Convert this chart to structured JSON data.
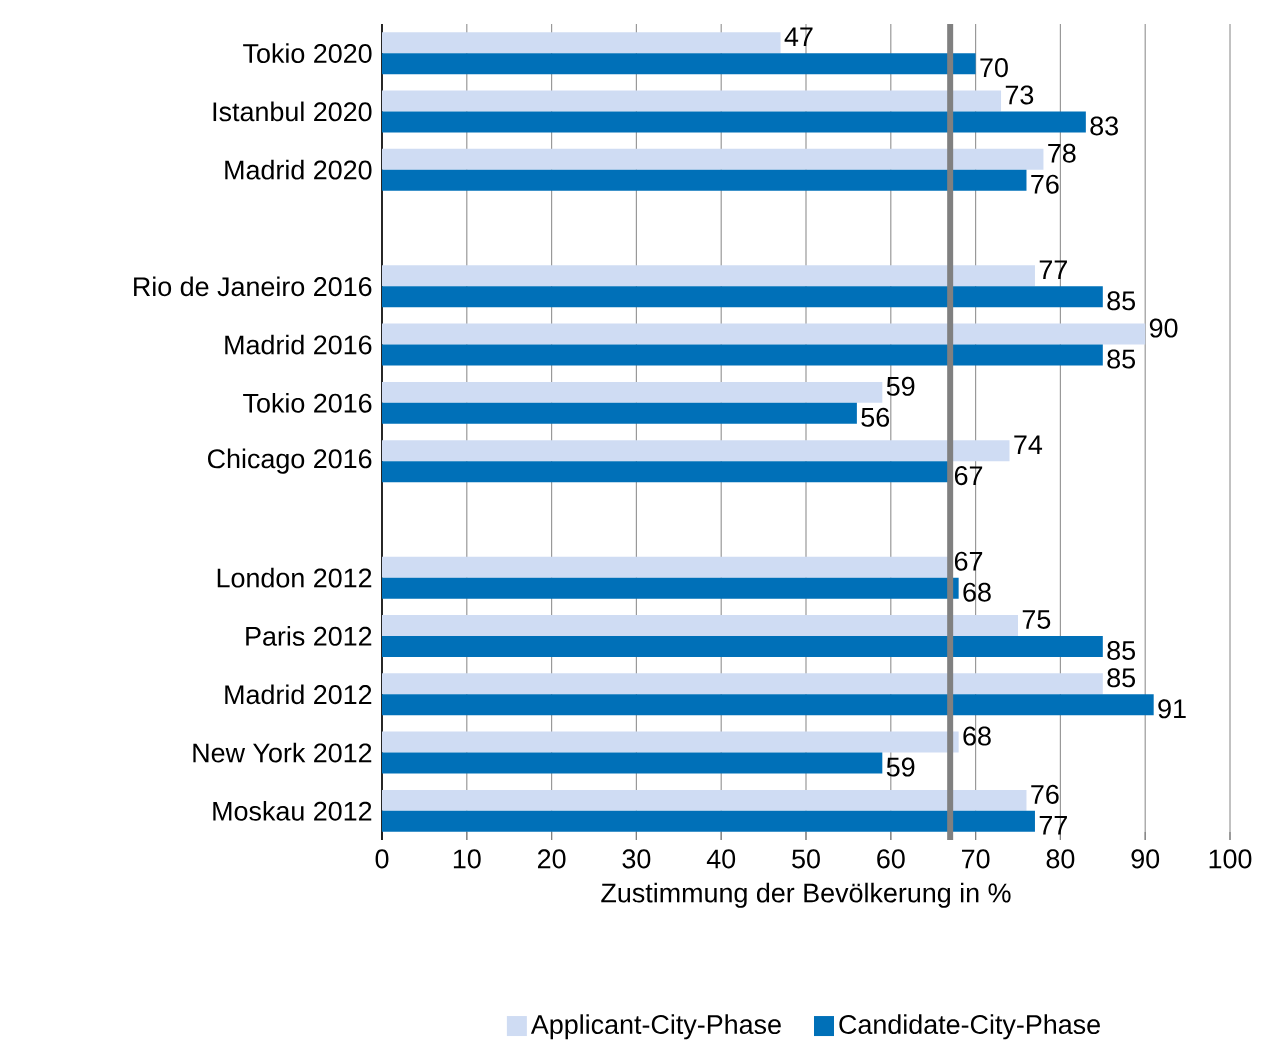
{
  "chart_data": {
    "type": "bar",
    "orientation": "horizontal",
    "xlabel": "Zustimmung der Bevölkerung in %",
    "categories": [
      "Tokio 2020",
      "Istanbul 2020",
      "Madrid 2020",
      null,
      "Rio de Janeiro 2016",
      "Madrid 2016",
      "Tokio 2016",
      "Chicago 2016",
      null,
      "London 2012",
      "Paris 2012",
      "Madrid 2012",
      "New York 2012",
      "Moskau 2012"
    ],
    "series": [
      {
        "name": "Applicant-City-Phase",
        "color": "#cfdcf3",
        "values": [
          47,
          73,
          78,
          null,
          77,
          90,
          59,
          74,
          null,
          67,
          75,
          85,
          68,
          76
        ]
      },
      {
        "name": "Candidate-City-Phase",
        "color": "#0070b8",
        "values": [
          70,
          83,
          76,
          null,
          85,
          85,
          56,
          67,
          null,
          68,
          85,
          91,
          59,
          77
        ]
      }
    ],
    "xlim": [
      0,
      100
    ],
    "xticks": [
      0,
      10,
      20,
      30,
      40,
      50,
      60,
      70,
      80,
      90,
      100
    ],
    "grid": "x",
    "legend": "bottom",
    "data_labels": true,
    "ref_lines": [
      {
        "axis": "x",
        "value": 67,
        "color": "#808080"
      }
    ]
  }
}
